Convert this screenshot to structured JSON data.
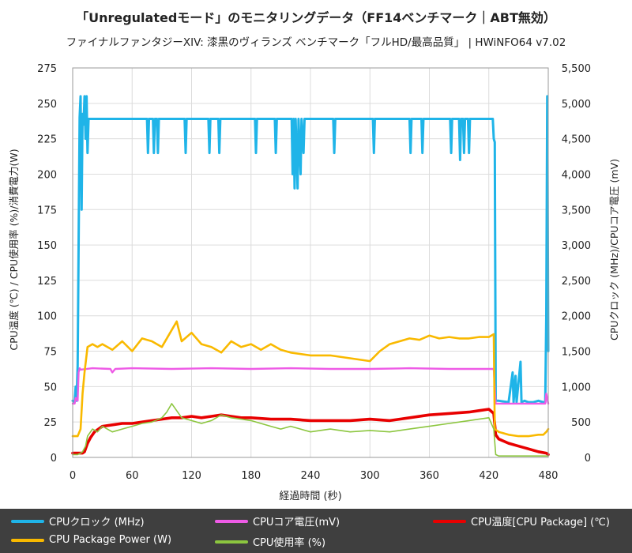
{
  "chart_data": {
    "type": "line",
    "title": "「Unregulatedモード」のモニタリングデータ（FF14ベンチマーク｜ABT無効）",
    "subtitle": "ファイナルファンタジーXIV: 漆黒のヴィランズ ベンチマーク「フルHD/最高品質」 | HWiNFO64 v7.02",
    "xlabel": "経過時間 (秒)",
    "ylabel_left": "CPU温度 (℃) / CPU使用率 (%)/消費電力(W)",
    "ylabel_right": "CPUクロック (MHz)/CPUコア電圧 (mV)",
    "xlim": [
      0,
      480
    ],
    "ylim_left": [
      0,
      275
    ],
    "ylim_right": [
      0,
      5500
    ],
    "x_ticks": [
      "0",
      "60",
      "120",
      "180",
      "240",
      "300",
      "360",
      "420",
      "480"
    ],
    "y_left_ticks": [
      "0",
      "25",
      "50",
      "75",
      "100",
      "125",
      "150",
      "175",
      "200",
      "225",
      "250",
      "275"
    ],
    "y_right_ticks": [
      "0",
      "500",
      "1,000",
      "1,500",
      "2,000",
      "2,500",
      "3,000",
      "3,500",
      "4,000",
      "4,500",
      "5,000",
      "5,500"
    ],
    "series": [
      {
        "name": "CPUクロック (MHz)",
        "axis": "right",
        "color": "#1fb4e8",
        "points": [
          [
            0,
            800
          ],
          [
            2,
            780
          ],
          [
            3,
            1000
          ],
          [
            4,
            800
          ],
          [
            5,
            1300
          ],
          [
            6,
            3000
          ],
          [
            7,
            4800
          ],
          [
            8,
            5100
          ],
          [
            9,
            3500
          ],
          [
            10,
            4850
          ],
          [
            11,
            4700
          ],
          [
            12,
            5100
          ],
          [
            13,
            4500
          ],
          [
            14,
            5100
          ],
          [
            15,
            4300
          ],
          [
            16,
            4780
          ],
          [
            20,
            4780
          ],
          [
            75,
            4780
          ],
          [
            76,
            4300
          ],
          [
            77,
            4780
          ],
          [
            81,
            4780
          ],
          [
            82,
            4300
          ],
          [
            83,
            4780
          ],
          [
            85,
            4780
          ],
          [
            86,
            4300
          ],
          [
            87,
            4780
          ],
          [
            113,
            4780
          ],
          [
            114,
            4300
          ],
          [
            115,
            4780
          ],
          [
            137,
            4780
          ],
          [
            138,
            4300
          ],
          [
            139,
            4780
          ],
          [
            147,
            4780
          ],
          [
            148,
            4300
          ],
          [
            149,
            4780
          ],
          [
            184,
            4780
          ],
          [
            185,
            4300
          ],
          [
            186,
            4780
          ],
          [
            204,
            4780
          ],
          [
            205,
            4300
          ],
          [
            206,
            4780
          ],
          [
            221,
            4780
          ],
          [
            222,
            4000
          ],
          [
            223,
            4780
          ],
          [
            224,
            3800
          ],
          [
            225,
            4780
          ],
          [
            227,
            3800
          ],
          [
            228,
            4780
          ],
          [
            230,
            4000
          ],
          [
            231,
            4780
          ],
          [
            233,
            4300
          ],
          [
            234,
            4780
          ],
          [
            263,
            4780
          ],
          [
            264,
            4300
          ],
          [
            265,
            4780
          ],
          [
            303,
            4780
          ],
          [
            304,
            4300
          ],
          [
            305,
            4780
          ],
          [
            340,
            4780
          ],
          [
            341,
            4300
          ],
          [
            342,
            4780
          ],
          [
            352,
            4780
          ],
          [
            353,
            4300
          ],
          [
            354,
            4780
          ],
          [
            381,
            4780
          ],
          [
            382,
            4300
          ],
          [
            383,
            4780
          ],
          [
            390,
            4780
          ],
          [
            391,
            4200
          ],
          [
            392,
            4780
          ],
          [
            394,
            4780
          ],
          [
            395,
            4300
          ],
          [
            396,
            4780
          ],
          [
            399,
            4780
          ],
          [
            400,
            4300
          ],
          [
            401,
            4780
          ],
          [
            424,
            4780
          ],
          [
            425,
            4500
          ],
          [
            426,
            4450
          ],
          [
            427,
            800
          ],
          [
            430,
            800
          ],
          [
            440,
            780
          ],
          [
            444,
            1200
          ],
          [
            445,
            780
          ],
          [
            447,
            1150
          ],
          [
            448,
            780
          ],
          [
            452,
            1350
          ],
          [
            453,
            780
          ],
          [
            456,
            800
          ],
          [
            460,
            780
          ],
          [
            465,
            780
          ],
          [
            470,
            800
          ],
          [
            475,
            780
          ],
          [
            477,
            780
          ],
          [
            478,
            2000
          ],
          [
            479,
            5100
          ],
          [
            480,
            1500
          ]
        ]
      },
      {
        "name": "CPUコア電圧(mV)",
        "axis": "right",
        "color": "#ee5be6",
        "points": [
          [
            0,
            760
          ],
          [
            2,
            760
          ],
          [
            3,
            840
          ],
          [
            5,
            800
          ],
          [
            6,
            1200
          ],
          [
            7,
            1260
          ],
          [
            8,
            1240
          ],
          [
            20,
            1260
          ],
          [
            38,
            1250
          ],
          [
            40,
            1200
          ],
          [
            43,
            1250
          ],
          [
            60,
            1260
          ],
          [
            100,
            1250
          ],
          [
            140,
            1260
          ],
          [
            180,
            1250
          ],
          [
            220,
            1260
          ],
          [
            260,
            1250
          ],
          [
            300,
            1250
          ],
          [
            340,
            1260
          ],
          [
            380,
            1250
          ],
          [
            422,
            1250
          ],
          [
            425,
            1250
          ],
          [
            427,
            760
          ],
          [
            432,
            760
          ],
          [
            450,
            760
          ],
          [
            470,
            760
          ],
          [
            477,
            760
          ],
          [
            478,
            900
          ],
          [
            480,
            760
          ]
        ]
      },
      {
        "name": "CPU温度[CPU Package] (℃)",
        "axis": "left",
        "color": "#e80000",
        "points": [
          [
            0,
            3
          ],
          [
            5,
            3
          ],
          [
            8,
            3
          ],
          [
            10,
            3
          ],
          [
            12,
            4
          ],
          [
            15,
            10
          ],
          [
            18,
            14
          ],
          [
            22,
            18
          ],
          [
            30,
            22
          ],
          [
            40,
            23
          ],
          [
            50,
            24
          ],
          [
            60,
            24
          ],
          [
            70,
            25
          ],
          [
            80,
            26
          ],
          [
            90,
            27
          ],
          [
            100,
            28
          ],
          [
            110,
            28
          ],
          [
            120,
            29
          ],
          [
            130,
            28
          ],
          [
            140,
            29
          ],
          [
            150,
            30
          ],
          [
            160,
            29
          ],
          [
            170,
            28
          ],
          [
            180,
            28
          ],
          [
            200,
            27
          ],
          [
            220,
            27
          ],
          [
            240,
            26
          ],
          [
            260,
            26
          ],
          [
            280,
            26
          ],
          [
            300,
            27
          ],
          [
            320,
            26
          ],
          [
            340,
            28
          ],
          [
            360,
            30
          ],
          [
            380,
            31
          ],
          [
            400,
            32
          ],
          [
            410,
            33
          ],
          [
            420,
            34
          ],
          [
            425,
            31
          ],
          [
            427,
            16
          ],
          [
            430,
            13
          ],
          [
            440,
            10
          ],
          [
            450,
            8
          ],
          [
            460,
            6
          ],
          [
            470,
            4
          ],
          [
            478,
            3
          ],
          [
            480,
            2
          ]
        ]
      },
      {
        "name": "CPU Package Power (W)",
        "axis": "left",
        "color": "#f9b900",
        "points": [
          [
            0,
            15
          ],
          [
            5,
            15
          ],
          [
            8,
            20
          ],
          [
            10,
            45
          ],
          [
            12,
            60
          ],
          [
            15,
            78
          ],
          [
            20,
            80
          ],
          [
            25,
            78
          ],
          [
            30,
            80
          ],
          [
            40,
            76
          ],
          [
            50,
            82
          ],
          [
            60,
            75
          ],
          [
            70,
            84
          ],
          [
            80,
            82
          ],
          [
            90,
            78
          ],
          [
            100,
            90
          ],
          [
            105,
            96
          ],
          [
            110,
            82
          ],
          [
            120,
            88
          ],
          [
            130,
            80
          ],
          [
            140,
            78
          ],
          [
            150,
            74
          ],
          [
            160,
            82
          ],
          [
            170,
            78
          ],
          [
            180,
            80
          ],
          [
            190,
            76
          ],
          [
            200,
            80
          ],
          [
            210,
            76
          ],
          [
            220,
            74
          ],
          [
            240,
            72
          ],
          [
            260,
            72
          ],
          [
            280,
            70
          ],
          [
            300,
            68
          ],
          [
            310,
            75
          ],
          [
            320,
            80
          ],
          [
            330,
            82
          ],
          [
            340,
            84
          ],
          [
            350,
            83
          ],
          [
            360,
            86
          ],
          [
            370,
            84
          ],
          [
            380,
            85
          ],
          [
            390,
            84
          ],
          [
            400,
            84
          ],
          [
            410,
            85
          ],
          [
            420,
            85
          ],
          [
            425,
            87
          ],
          [
            426,
            20
          ],
          [
            430,
            18
          ],
          [
            440,
            16
          ],
          [
            450,
            15
          ],
          [
            460,
            15
          ],
          [
            470,
            16
          ],
          [
            475,
            16
          ],
          [
            478,
            18
          ],
          [
            480,
            20
          ]
        ]
      },
      {
        "name": "CPU使用率 (%)",
        "axis": "left",
        "color": "#8cc63f",
        "points": [
          [
            0,
            2
          ],
          [
            5,
            2
          ],
          [
            8,
            3
          ],
          [
            10,
            4
          ],
          [
            13,
            8
          ],
          [
            15,
            15
          ],
          [
            20,
            20
          ],
          [
            25,
            18
          ],
          [
            30,
            22
          ],
          [
            40,
            18
          ],
          [
            50,
            20
          ],
          [
            60,
            22
          ],
          [
            70,
            24
          ],
          [
            80,
            25
          ],
          [
            90,
            28
          ],
          [
            95,
            32
          ],
          [
            100,
            38
          ],
          [
            110,
            28
          ],
          [
            120,
            26
          ],
          [
            130,
            24
          ],
          [
            140,
            26
          ],
          [
            150,
            30
          ],
          [
            160,
            28
          ],
          [
            170,
            27
          ],
          [
            180,
            26
          ],
          [
            190,
            24
          ],
          [
            200,
            22
          ],
          [
            210,
            20
          ],
          [
            220,
            22
          ],
          [
            240,
            18
          ],
          [
            260,
            20
          ],
          [
            280,
            18
          ],
          [
            300,
            19
          ],
          [
            320,
            18
          ],
          [
            340,
            20
          ],
          [
            360,
            22
          ],
          [
            380,
            24
          ],
          [
            400,
            26
          ],
          [
            410,
            27
          ],
          [
            420,
            28
          ],
          [
            425,
            20
          ],
          [
            427,
            2
          ],
          [
            430,
            1
          ],
          [
            440,
            1
          ],
          [
            460,
            1
          ],
          [
            480,
            1
          ]
        ]
      }
    ]
  }
}
